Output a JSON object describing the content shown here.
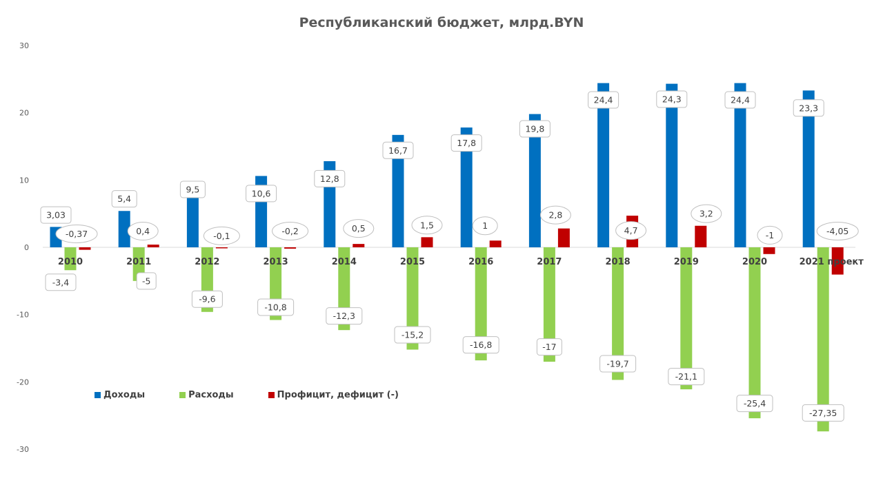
{
  "chart_data": {
    "type": "bar",
    "title": "Республиканский бюджет, млрд.BYN",
    "xlabel": "",
    "ylabel": "",
    "ylim": [
      -30,
      30
    ],
    "yticks": [
      "30",
      "20",
      "10",
      "0",
      "-10",
      "-20",
      "-30"
    ],
    "ytick_values": [
      30,
      20,
      10,
      0,
      -10,
      -20,
      -30
    ],
    "grid": false,
    "legend_position": "bottom-left",
    "categories": [
      "2010",
      "2011",
      "2012",
      "2013",
      "2014",
      "2015",
      "2016",
      "2017",
      "2018",
      "2019",
      "2020",
      "2021 проект"
    ],
    "series": [
      {
        "name": "Доходы",
        "color": "#0070C0",
        "values": [
          3.03,
          5.4,
          9.5,
          10.6,
          12.8,
          16.7,
          17.8,
          19.8,
          24.4,
          24.3,
          24.4,
          23.3
        ],
        "labels": [
          "3,03",
          "5,4",
          "9,5",
          "10,6",
          "12,8",
          "16,7",
          "17,8",
          "19,8",
          "24,4",
          "24,3",
          "24,4",
          "23,3"
        ]
      },
      {
        "name": "Расходы",
        "color": "#92D050",
        "values": [
          -3.4,
          -5,
          -9.6,
          -10.8,
          -12.3,
          -15.2,
          -16.8,
          -17,
          -19.7,
          -21.1,
          -25.4,
          -27.35
        ],
        "labels": [
          "-3,4",
          "-5",
          "-9,6",
          "-10,8",
          "-12,3",
          "-15,2",
          "-16,8",
          "-17",
          "-19,7",
          "-21,1",
          "-25,4",
          "-27,35"
        ]
      },
      {
        "name": "Профицит, дефицит (-)",
        "color": "#C00000",
        "values": [
          -0.37,
          0.4,
          -0.1,
          -0.2,
          0.5,
          1.5,
          1,
          2.8,
          4.7,
          3.2,
          -1,
          -4.05
        ],
        "labels": [
          "-0,37",
          "0,4",
          "-0,1",
          "-0,2",
          "0,5",
          "1,5",
          "1",
          "2,8",
          "4,7",
          "3,2",
          "-1",
          "-4,05"
        ]
      }
    ]
  }
}
